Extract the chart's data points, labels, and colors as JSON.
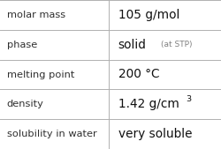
{
  "rows": [
    {
      "label": "molar mass",
      "value": "105 g/mol",
      "type": "plain"
    },
    {
      "label": "phase",
      "value": "solid",
      "type": "phase",
      "extra": "(at STP)"
    },
    {
      "label": "melting point",
      "value": "200 °C",
      "type": "plain"
    },
    {
      "label": "density",
      "value": "1.42 g/cm",
      "type": "super",
      "superscript": "3"
    },
    {
      "label": "solubility in water",
      "value": "very soluble",
      "type": "plain"
    }
  ],
  "col_split": 0.492,
  "background": "#ffffff",
  "border_color": "#b0b0b0",
  "label_color": "#303030",
  "value_color": "#101010",
  "extra_color": "#808080",
  "label_fontsize": 8.2,
  "value_fontsize": 9.8,
  "extra_fontsize": 6.5,
  "super_fontsize": 6.8
}
